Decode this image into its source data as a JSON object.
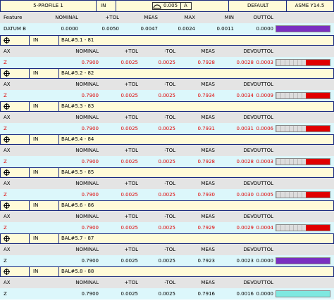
{
  "header": {
    "feature": "5-PROFILE 1",
    "units": "IN",
    "tolerance": "0.005",
    "datum": "A",
    "alignment": "DEFAULT",
    "standard": "ASME Y14.5"
  },
  "datum_table": {
    "columns": [
      "Feature",
      "NOMINAL",
      "+TOL",
      "MEAS",
      "MAX",
      "MIN",
      "OUTTOL"
    ],
    "row": [
      "DATUM B",
      "0.0000",
      "0.0050",
      "0.0047",
      "0.0024",
      "0.0011",
      "0.0000"
    ],
    "color": "#000000",
    "bar_color": "#7a2fc0"
  },
  "features": [
    {
      "units": "IN",
      "label": "BAL#5.1 - 81",
      "columns": [
        "AX",
        "NOMINAL",
        "+TOL",
        "-TOL",
        "MEAS",
        "DEV",
        "OUTTOL"
      ],
      "row": [
        "Z",
        "0.7900",
        "0.0025",
        "0.0025",
        "0.7928",
        "0.0028",
        "0.0003"
      ],
      "color": "#e00000",
      "bar_color": "#e00000"
    },
    {
      "units": "IN",
      "label": "BAL#5.2 - 82",
      "columns": [
        "AX",
        "NOMINAL",
        "+TOL",
        "-TOL",
        "MEAS",
        "DEV",
        "OUTTOL"
      ],
      "row": [
        "Z",
        "0.7900",
        "0.0025",
        "0.0025",
        "0.7934",
        "0.0034",
        "0.0009"
      ],
      "color": "#e00000",
      "bar_color": "#e00000"
    },
    {
      "units": "IN",
      "label": "BAL#5.3 - 83",
      "columns": [
        "AX",
        "NOMINAL",
        "+TOL",
        "-TOL",
        "MEAS",
        "DEV",
        "OUTTOL"
      ],
      "row": [
        "Z",
        "0.7900",
        "0.0025",
        "0.0025",
        "0.7931",
        "0.0031",
        "0.0006"
      ],
      "color": "#e00000",
      "bar_color": "#e00000"
    },
    {
      "units": "IN",
      "label": "BAL#5.4 - 84",
      "columns": [
        "AX",
        "NOMINAL",
        "+TOL",
        "-TOL",
        "MEAS",
        "DEV",
        "OUTTOL"
      ],
      "row": [
        "Z",
        "0.7900",
        "0.0025",
        "0.0025",
        "0.7928",
        "0.0028",
        "0.0003"
      ],
      "color": "#e00000",
      "bar_color": "#e00000"
    },
    {
      "units": "IN",
      "label": "BAL#5.5 - 85",
      "columns": [
        "AX",
        "NOMINAL",
        "+TOL",
        "-TOL",
        "MEAS",
        "DEV",
        "OUTTOL"
      ],
      "row": [
        "Z",
        "0.7900",
        "0.0025",
        "0.0025",
        "0.7930",
        "0.0030",
        "0.0005"
      ],
      "color": "#e00000",
      "bar_color": "#e00000"
    },
    {
      "units": "IN",
      "label": "BAL#5.6 - 86",
      "columns": [
        "AX",
        "NOMINAL",
        "+TOL",
        "-TOL",
        "MEAS",
        "DEV",
        "OUTTOL"
      ],
      "row": [
        "Z",
        "0.7900",
        "0.0025",
        "0.0025",
        "0.7929",
        "0.0029",
        "0.0004"
      ],
      "color": "#e00000",
      "bar_color": "#e00000"
    },
    {
      "units": "IN",
      "label": "BAL#5.7 - 87",
      "columns": [
        "AX",
        "NOMINAL",
        "+TOL",
        "-TOL",
        "MEAS",
        "DEV",
        "OUTTOL"
      ],
      "row": [
        "Z",
        "0.7900",
        "0.0025",
        "0.0025",
        "0.7923",
        "0.0023",
        "0.0000"
      ],
      "color": "#000000",
      "bar_color": "#7a2fc0"
    },
    {
      "units": "IN",
      "label": "BAL#5.8 - 88",
      "columns": [
        "AX",
        "NOMINAL",
        "+TOL",
        "-TOL",
        "MEAS",
        "DEV",
        "OUTTOL"
      ],
      "row": [
        "Z",
        "0.7900",
        "0.0025",
        "0.0025",
        "0.7916",
        "0.0016",
        "0.0000"
      ],
      "color": "#000000",
      "bar_color": "#7fe8e0"
    }
  ]
}
